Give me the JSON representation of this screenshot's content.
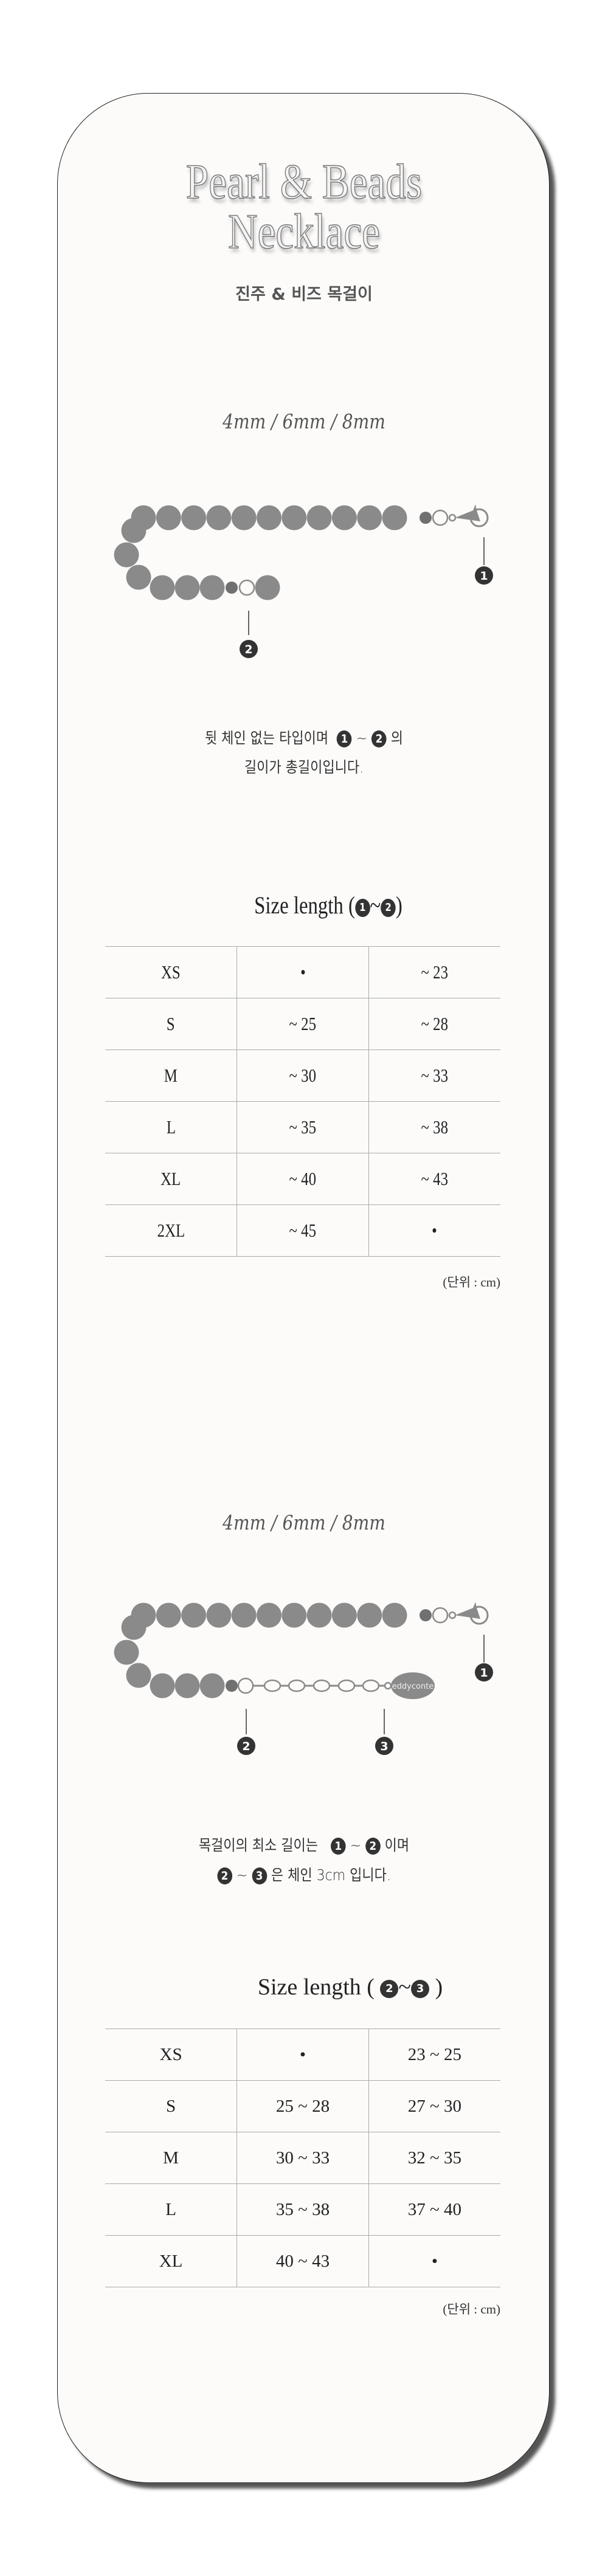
{
  "header": {
    "title_line1": "Pearl & Beads",
    "title_line2": "Necklace",
    "subtitle": "진주 & 비즈 목걸이"
  },
  "section1": {
    "sizes_label": "4mm / 6mm / 8mm",
    "markers": [
      "1",
      "2"
    ],
    "desc_line1_pre": "뒷 체인 없는 타입이며",
    "desc_line1_post": "의",
    "desc_line2": "길이가 총길이입니다.",
    "tilde": "~",
    "heading": "Size length (",
    "heading_close": ")",
    "table": [
      [
        "XS",
        "•",
        "~ 23"
      ],
      [
        "S",
        "~ 25",
        "~ 28"
      ],
      [
        "M",
        "~ 30",
        "~ 33"
      ],
      [
        "L",
        "~ 35",
        "~ 38"
      ],
      [
        "XL",
        "~ 40",
        "~ 43"
      ],
      [
        "2XL",
        "~ 45",
        "•"
      ]
    ],
    "unit": "(단위 : cm)"
  },
  "section2": {
    "sizes_label": "4mm / 6mm / 8mm",
    "markers": [
      "1",
      "2",
      "3"
    ],
    "tag_text": "eddyconte",
    "desc_line1_pre": "목걸이의 최소 길이는",
    "desc_line1_post": "이며",
    "desc_line2_post": "은 체인 3cm 입니다.",
    "tilde": "~",
    "heading": "Size length (",
    "heading_close": ")",
    "table": [
      [
        "XS",
        "•",
        "23 ~ 25"
      ],
      [
        "S",
        "25 ~ 28",
        "27 ~ 30"
      ],
      [
        "M",
        "30 ~ 33",
        "32 ~ 35"
      ],
      [
        "L",
        "35 ~ 38",
        "37 ~ 40"
      ],
      [
        "XL",
        "40 ~ 43",
        "•"
      ]
    ],
    "unit": "(단위 : cm)"
  },
  "colors": {
    "bead": "#8a8a8a",
    "bead_dark": "#707070",
    "marker": "#333333",
    "background": "#fcfbfa"
  }
}
